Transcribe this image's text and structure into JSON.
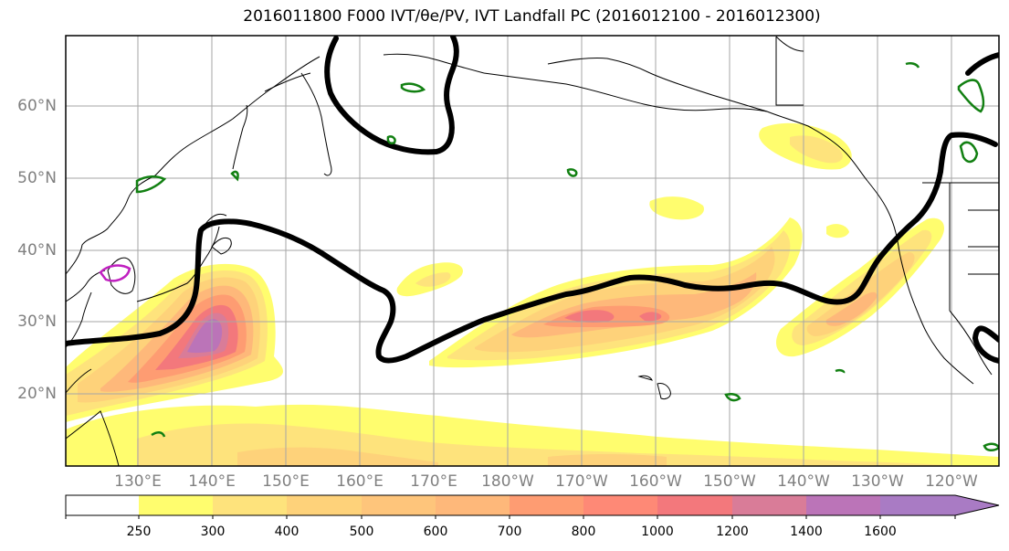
{
  "title_text": "2016011800 F000 IVT/θe/PV, IVT Landfall PC (2016012100 - 2016012300)",
  "lat_labels": [
    "60°N",
    "50°N",
    "40°N",
    "30°N",
    "20°N"
  ],
  "lon_labels": [
    "130°E",
    "140°E",
    "150°E",
    "160°E",
    "170°E",
    "180°W",
    "170°W",
    "160°W",
    "150°W",
    "140°W",
    "130°W",
    "120°W"
  ],
  "colorbar": {
    "levels": [
      "250",
      "300",
      "400",
      "500",
      "600",
      "700",
      "800",
      "1000",
      "1200",
      "1400",
      "1600"
    ],
    "colors": [
      "#ffffff",
      "#fffd6e",
      "#fee37c",
      "#fed27a",
      "#fec57b",
      "#feb87a",
      "#fe9c72",
      "#fe8976",
      "#f3787c",
      "#d97c98",
      "#bb74b8",
      "#a97bc4"
    ]
  },
  "colors": {
    "theta_contour": "#000000",
    "pv_contour": "#128012",
    "pv_contour_alt": "#c020c0",
    "coastline": "#000000",
    "grid": "#a6a6a6",
    "tick_label": "#808080"
  }
}
